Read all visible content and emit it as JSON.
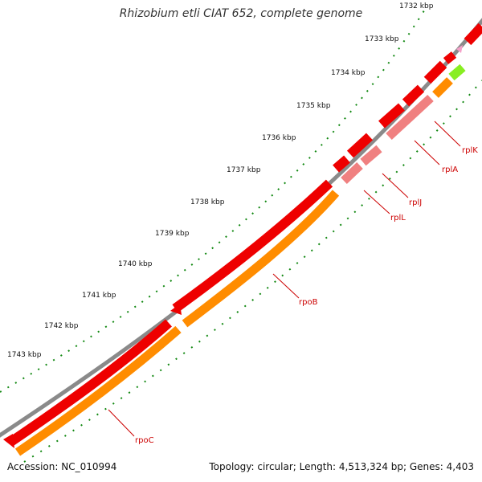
{
  "title": "Rhizobium etli CIAT 652, complete genome",
  "footer": {
    "accession": "Accession: NC_010994",
    "summary": "Topology: circular; Length: 4,513,324 bp; Genes: 4,403"
  },
  "ruler_labels": [
    "1732 kbp",
    "1733 kbp",
    "1734 kbp",
    "1735 kbp",
    "1736 kbp",
    "1737 kbp",
    "1738 kbp",
    "1739 kbp",
    "1740 kbp",
    "1741 kbp",
    "1742 kbp",
    "1743 kbp"
  ],
  "gene_labels": [
    "rplK",
    "rplA",
    "rplJ",
    "rplL",
    "rpoB",
    "rpoC"
  ],
  "colors": {
    "backbone": "#8a8a8a",
    "cds": "#ee0000",
    "cds_light": "#f08080",
    "rna_orange": "#ff8c00",
    "rna_green": "#88ee22",
    "pink": "#f4a0c8",
    "ruler": "#118811",
    "label": "#cc0000"
  }
}
